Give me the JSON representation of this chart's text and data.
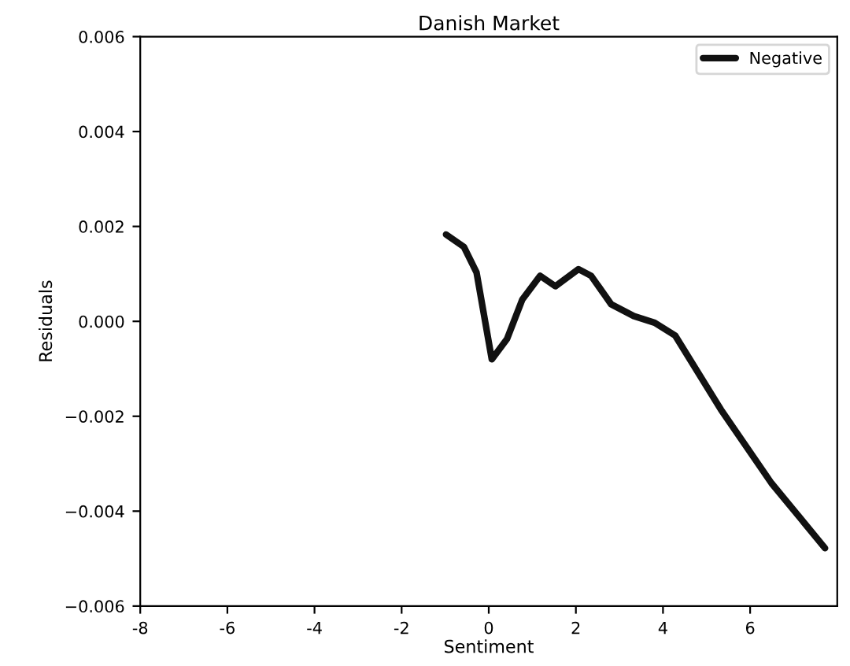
{
  "chart_data": {
    "type": "line",
    "title": "Danish Market",
    "xlabel": "Sentiment",
    "ylabel": "Residuals",
    "xlim": [
      -8,
      8
    ],
    "xticks": [
      -8,
      -6,
      -4,
      -2,
      0,
      2,
      4,
      6
    ],
    "ylim": [
      -0.006,
      0.006
    ],
    "yticks": [
      {
        "value": -0.006,
        "label": "−0.006"
      },
      {
        "value": -0.004,
        "label": "−0.004"
      },
      {
        "value": -0.002,
        "label": "−0.002"
      },
      {
        "value": 0,
        "label": "0.000"
      },
      {
        "value": 0.002,
        "label": "0.002"
      },
      {
        "value": 0.004,
        "label": "0.004"
      },
      {
        "value": 0.006,
        "label": "0.006"
      }
    ],
    "grid": false,
    "legend": "top right",
    "series": [
      {
        "name": "Negative",
        "color": "#111111",
        "x": [
          -0.98,
          -0.57,
          -0.28,
          0.07,
          0.42,
          0.77,
          1.18,
          1.53,
          2.06,
          2.35,
          2.81,
          3.33,
          3.81,
          4.28,
          5.33,
          6.49,
          7.72
        ],
        "values": [
          0.00183,
          0.00157,
          0.00103,
          -0.0008,
          -0.00037,
          0.00046,
          0.00096,
          0.00074,
          0.0011,
          0.00096,
          0.00036,
          0.00011,
          -3e-05,
          -0.0003,
          -0.00186,
          -0.00341,
          -0.00478
        ]
      }
    ]
  }
}
